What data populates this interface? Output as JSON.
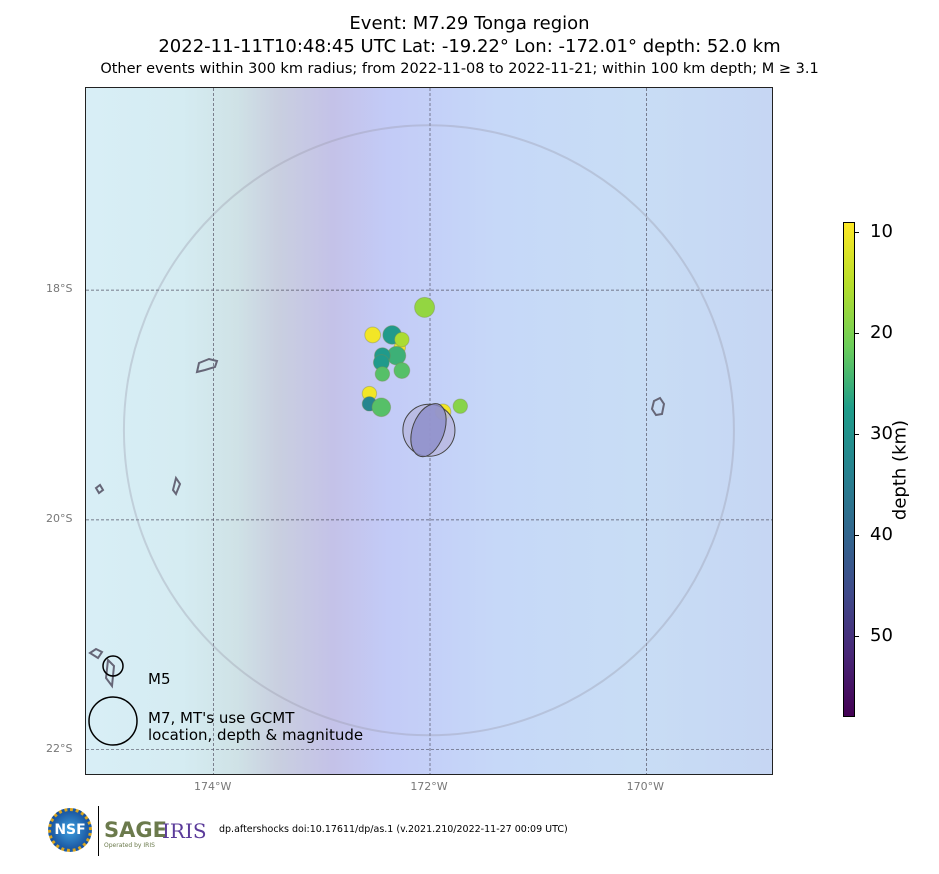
{
  "title": {
    "line1": "Event: M7.29 Tonga region",
    "line2": "2022-11-11T10:48:45 UTC Lat: -19.22° Lon: -172.01° depth: 52.0 km",
    "line3": "Other events within 300 km radius; from 2022-11-08 to 2022-11-21; within 100 km depth; M ≥ 3.1"
  },
  "map": {
    "lon_range": [
      -175.18,
      -168.82
    ],
    "lat_range": [
      -22.23,
      -16.24
    ],
    "lon_ticks": [
      {
        "v": -174,
        "label": "174°W"
      },
      {
        "v": -172,
        "label": "172°W"
      },
      {
        "v": -170,
        "label": "170°W"
      }
    ],
    "lat_ticks": [
      {
        "v": -18,
        "label": "18°S"
      },
      {
        "v": -20,
        "label": "20°S"
      },
      {
        "v": -22,
        "label": "22°S"
      }
    ],
    "mainshock": {
      "lon": -172.01,
      "lat": -19.22,
      "mag": 7.29,
      "depth": 52.0
    },
    "radius_km": 300,
    "events": [
      {
        "lon": -172.05,
        "lat": -18.15,
        "mag": 5.0,
        "depth": 18
      },
      {
        "lon": -172.53,
        "lat": -18.39,
        "mag": 4.7,
        "depth": 10
      },
      {
        "lon": -172.35,
        "lat": -18.39,
        "mag": 4.9,
        "depth": 28
      },
      {
        "lon": -172.28,
        "lat": -18.5,
        "mag": 4.4,
        "depth": 10
      },
      {
        "lon": -172.26,
        "lat": -18.43,
        "mag": 4.6,
        "depth": 16
      },
      {
        "lon": -172.31,
        "lat": -18.57,
        "mag": 4.9,
        "depth": 25
      },
      {
        "lon": -172.44,
        "lat": -18.57,
        "mag": 4.7,
        "depth": 28
      },
      {
        "lon": -172.45,
        "lat": -18.63,
        "mag": 4.7,
        "depth": 28
      },
      {
        "lon": -172.26,
        "lat": -18.7,
        "mag": 4.7,
        "depth": 23
      },
      {
        "lon": -172.44,
        "lat": -18.73,
        "mag": 4.6,
        "depth": 23
      },
      {
        "lon": -172.56,
        "lat": -18.9,
        "mag": 4.6,
        "depth": 10
      },
      {
        "lon": -172.56,
        "lat": -18.99,
        "mag": 4.6,
        "depth": 33
      },
      {
        "lon": -172.45,
        "lat": -19.02,
        "mag": 4.9,
        "depth": 23
      },
      {
        "lon": -171.88,
        "lat": -19.06,
        "mag": 4.7,
        "depth": 10
      },
      {
        "lon": -171.72,
        "lat": -19.01,
        "mag": 4.6,
        "depth": 19
      }
    ]
  },
  "legend": {
    "m5": "M5",
    "m7_line1": "M7, MT's use GCMT",
    "m7_line2": "location, depth & magnitude"
  },
  "colorbar": {
    "label": "depth (km)",
    "range": [
      9,
      58
    ],
    "ticks": [
      10,
      20,
      30,
      40,
      50
    ]
  },
  "footer": {
    "citation": "dp.aftershocks doi:10.17611/dp/as.1 (v.2021.210/2022-11-27 00:09 UTC)",
    "logo_nsf": "NSF",
    "logo_sage": "SAGE",
    "logo_iris": "IRIS",
    "logo_sub": "Operated by IRIS"
  }
}
